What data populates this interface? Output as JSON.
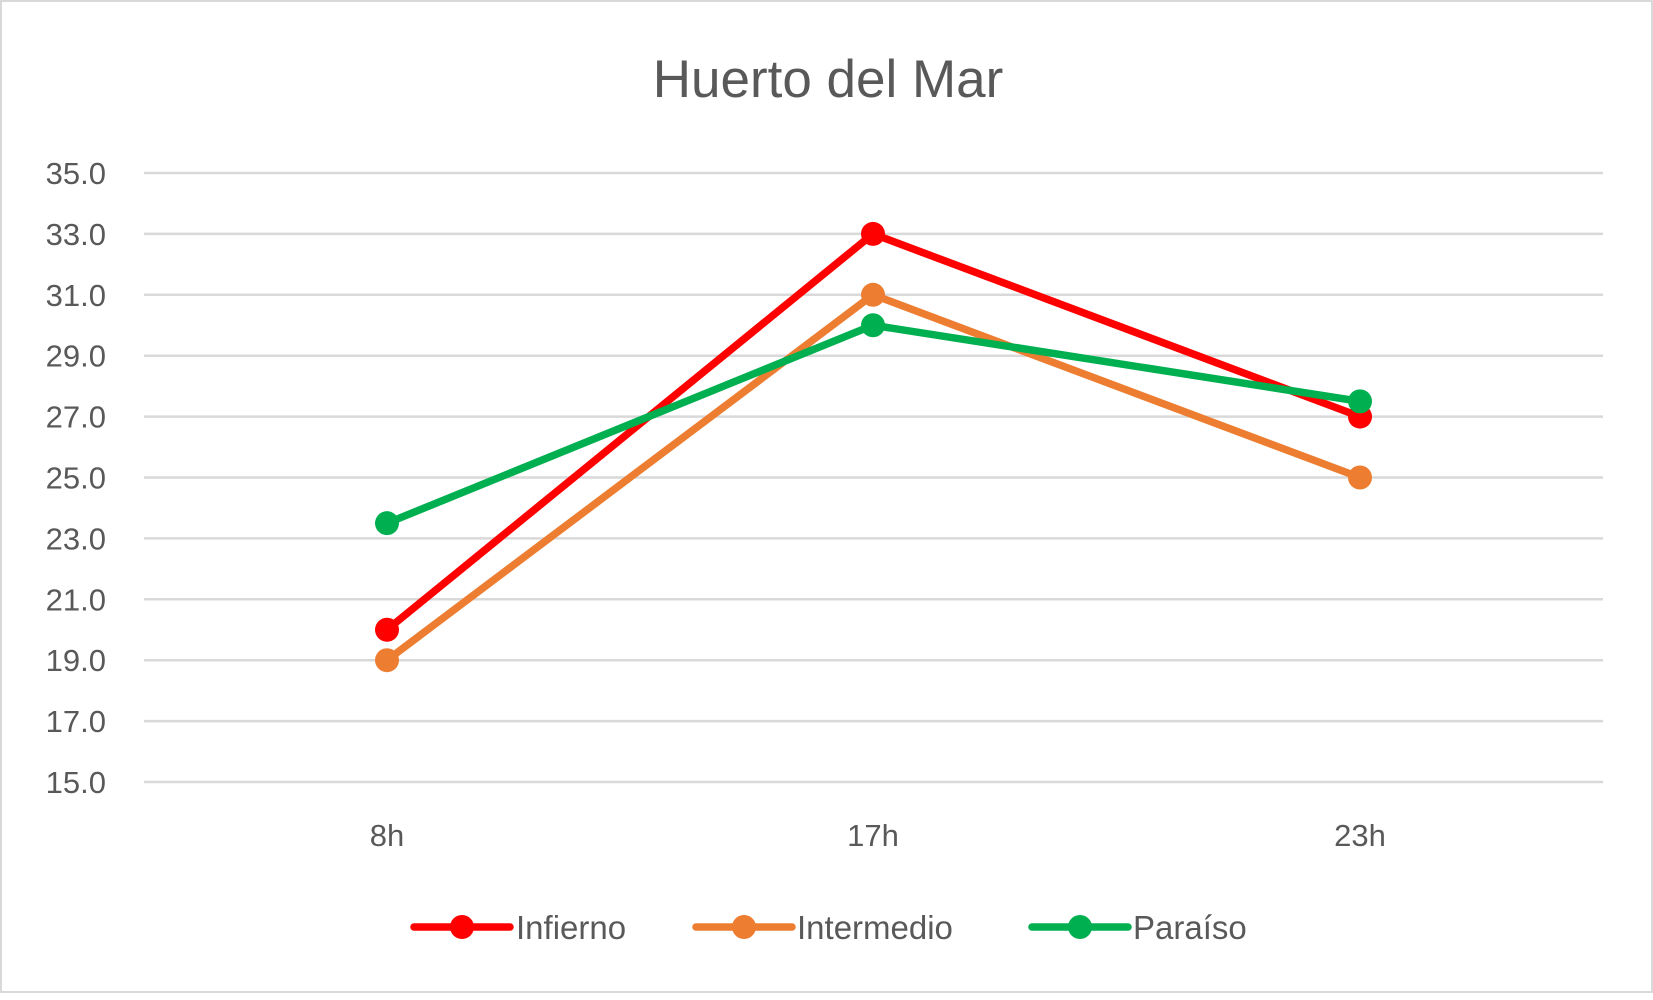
{
  "chart_data": {
    "type": "line",
    "title": "Huerto del Mar",
    "xlabel": "",
    "ylabel": "",
    "categories": [
      "8h",
      "17h",
      "23h"
    ],
    "series": [
      {
        "name": "Infierno",
        "color": "#ff0000",
        "values": [
          20.0,
          33.0,
          27.0
        ]
      },
      {
        "name": "Intermedio",
        "color": "#ed7d31",
        "values": [
          19.0,
          31.0,
          25.0
        ]
      },
      {
        "name": "Paraíso",
        "color": "#00b050",
        "values": [
          23.5,
          30.0,
          27.5
        ]
      }
    ],
    "ylim": [
      15.0,
      35.0
    ],
    "yticks": [
      "15.0",
      "17.0",
      "19.0",
      "21.0",
      "23.0",
      "25.0",
      "27.0",
      "29.0",
      "31.0",
      "33.0",
      "35.0"
    ],
    "grid": true,
    "legend_position": "bottom",
    "gridline_color": "#d9d9d9",
    "text_color": "#595959"
  }
}
